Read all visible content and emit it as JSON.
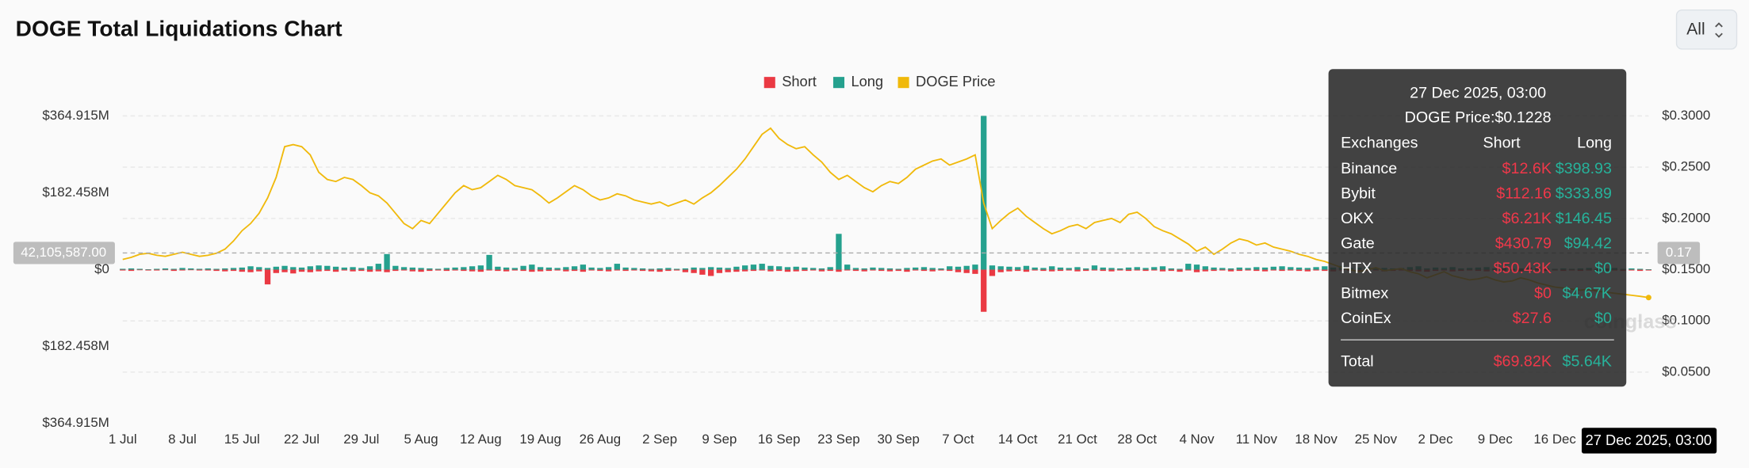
{
  "header": {
    "range_select": "All"
  },
  "watermark": "coinglass",
  "crosshair": {
    "y_label": "42,105,587.00",
    "y2_label": "0.17",
    "x_label": "27 Dec 2025, 03:00"
  },
  "tooltip": {
    "title": "27 Dec 2025, 03:00",
    "price": "DOGE Price:$0.1228",
    "columns": [
      "Exchanges",
      "Short",
      "Long"
    ],
    "rows": [
      [
        "Binance",
        "$12.6K",
        "$398.93"
      ],
      [
        "Bybit",
        "$112.16",
        "$333.89"
      ],
      [
        "OKX",
        "$6.21K",
        "$146.45"
      ],
      [
        "Gate",
        "$430.79",
        "$94.42"
      ],
      [
        "HTX",
        "$50.43K",
        "$0"
      ],
      [
        "Bitmex",
        "$0",
        "$4.67K"
      ],
      [
        "CoinEx",
        "$27.6",
        "$0"
      ]
    ],
    "total": [
      "Total",
      "$69.82K",
      "$5.64K"
    ]
  },
  "chart_data": {
    "type": "bar",
    "title": "DOGE Total Liquidations Chart",
    "categories": [
      "1 Jul",
      null,
      null,
      null,
      null,
      null,
      null,
      "8 Jul",
      null,
      null,
      null,
      null,
      null,
      null,
      "15 Jul",
      null,
      null,
      null,
      null,
      null,
      null,
      "22 Jul",
      null,
      null,
      null,
      null,
      null,
      null,
      "29 Jul",
      null,
      null,
      null,
      null,
      null,
      null,
      "5 Aug",
      null,
      null,
      null,
      null,
      null,
      null,
      "12 Aug",
      null,
      null,
      null,
      null,
      null,
      null,
      "19 Aug",
      null,
      null,
      null,
      null,
      null,
      null,
      "26 Aug",
      null,
      null,
      null,
      null,
      null,
      null,
      "2 Sep",
      null,
      null,
      null,
      null,
      null,
      null,
      "9 Sep",
      null,
      null,
      null,
      null,
      null,
      null,
      "16 Sep",
      null,
      null,
      null,
      null,
      null,
      null,
      "23 Sep",
      null,
      null,
      null,
      null,
      null,
      null,
      "30 Sep",
      null,
      null,
      null,
      null,
      null,
      null,
      "7 Oct",
      null,
      null,
      null,
      null,
      null,
      null,
      "14 Oct",
      null,
      null,
      null,
      null,
      null,
      null,
      "21 Oct",
      null,
      null,
      null,
      null,
      null,
      null,
      "28 Oct",
      null,
      null,
      null,
      null,
      null,
      null,
      "4 Nov",
      null,
      null,
      null,
      null,
      null,
      null,
      "11 Nov",
      null,
      null,
      null,
      null,
      null,
      null,
      "18 Nov",
      null,
      null,
      null,
      null,
      null,
      null,
      "25 Nov",
      null,
      null,
      null,
      null,
      null,
      null,
      "2 Dec",
      null,
      null,
      null,
      null,
      null,
      null,
      "9 Dec",
      null,
      null,
      null,
      null,
      null,
      null,
      "16 Dec",
      null,
      null,
      null,
      null,
      null,
      null,
      null,
      null,
      null,
      null,
      null
    ],
    "series": [
      {
        "name": "Short",
        "type": "bar",
        "color": "#ea3943",
        "values": [
          -2,
          -3,
          -1,
          -2,
          -2,
          -1,
          -3,
          -2,
          -1,
          -2,
          -2,
          -3,
          -4,
          -3,
          -5,
          -6,
          -4,
          -35,
          -8,
          -6,
          -9,
          -5,
          -6,
          -4,
          -3,
          -5,
          -2,
          -4,
          -3,
          -5,
          -4,
          -6,
          -3,
          -2,
          -4,
          -5,
          -3,
          -2,
          -3,
          -2,
          -3,
          -4,
          -5,
          -2,
          -3,
          -4,
          -2,
          -3,
          -5,
          -4,
          -3,
          -2,
          -4,
          -3,
          -5,
          -2,
          -3,
          -4,
          -2,
          -3,
          -2,
          -3,
          -4,
          -5,
          -3,
          -2,
          -6,
          -8,
          -12,
          -15,
          -8,
          -6,
          -5,
          -4,
          -3,
          -2,
          -4,
          -3,
          -5,
          -4,
          -3,
          -2,
          -4,
          -3,
          -5,
          -2,
          -3,
          -4,
          -2,
          -3,
          -4,
          -3,
          -5,
          -2,
          -3,
          -4,
          -2,
          -3,
          -6,
          -8,
          -10,
          -100,
          -15,
          -6,
          -4,
          -3,
          -5,
          -2,
          -3,
          -4,
          -3,
          -2,
          -4,
          -3,
          -2,
          -3,
          -4,
          -2,
          -3,
          -2,
          -3,
          -2,
          -4,
          -3,
          -5,
          -2,
          -6,
          -4,
          -3,
          -2,
          -4,
          -3,
          -2,
          -3,
          -4,
          -2,
          -3,
          -2,
          -3,
          -4,
          -2,
          -3,
          -4,
          -2,
          -3,
          -5,
          -3,
          -2,
          -4,
          -3,
          -2,
          -3,
          -4,
          -5,
          -3,
          -2,
          -4,
          -3,
          -2,
          -3,
          -4,
          -2,
          -3,
          -2,
          -4,
          -3,
          -2,
          -3,
          -2,
          -3,
          -2,
          -3,
          -2,
          -4,
          -3,
          -2,
          -3,
          -2,
          -3,
          -2
        ]
      },
      {
        "name": "Long",
        "type": "bar",
        "color": "#25a18e",
        "values": [
          2,
          3,
          2,
          1,
          2,
          3,
          2,
          4,
          3,
          2,
          3,
          2,
          3,
          4,
          5,
          8,
          6,
          4,
          7,
          9,
          6,
          5,
          8,
          10,
          9,
          7,
          5,
          6,
          4,
          8,
          14,
          37,
          9,
          6,
          5,
          4,
          3,
          2,
          4,
          5,
          6,
          8,
          10,
          35,
          7,
          5,
          4,
          9,
          12,
          6,
          5,
          4,
          6,
          8,
          12,
          5,
          4,
          6,
          14,
          5,
          4,
          3,
          2,
          3,
          4,
          2,
          3,
          5,
          4,
          6,
          5,
          4,
          7,
          10,
          12,
          14,
          9,
          8,
          6,
          7,
          5,
          4,
          3,
          6,
          85,
          12,
          4,
          3,
          5,
          4,
          3,
          2,
          4,
          5,
          6,
          4,
          3,
          8,
          7,
          9,
          12,
          364.915,
          10,
          8,
          7,
          6,
          9,
          5,
          4,
          8,
          5,
          4,
          6,
          3,
          10,
          5,
          4,
          3,
          5,
          6,
          4,
          6,
          8,
          3,
          2,
          14,
          12,
          8,
          5,
          4,
          3,
          5,
          4,
          6,
          5,
          7,
          8,
          6,
          5,
          4,
          6,
          8,
          5,
          9,
          4,
          5,
          6,
          3,
          4,
          3,
          4,
          6,
          8,
          3,
          5,
          4,
          6,
          3,
          4,
          5,
          6,
          3,
          4,
          2,
          3,
          5,
          4,
          3,
          2,
          3,
          2,
          3,
          4,
          2,
          3,
          4,
          2,
          3,
          2,
          1
        ]
      },
      {
        "name": "DOGE Price",
        "type": "line",
        "axis": "y2",
        "color": "#f0b90b",
        "values": [
          0.16,
          0.162,
          0.165,
          0.166,
          0.164,
          0.163,
          0.165,
          0.167,
          0.165,
          0.163,
          0.164,
          0.166,
          0.17,
          0.178,
          0.188,
          0.195,
          0.205,
          0.22,
          0.24,
          0.27,
          0.272,
          0.27,
          0.262,
          0.245,
          0.238,
          0.236,
          0.24,
          0.238,
          0.232,
          0.225,
          0.222,
          0.215,
          0.205,
          0.195,
          0.19,
          0.198,
          0.195,
          0.205,
          0.215,
          0.225,
          0.232,
          0.228,
          0.23,
          0.236,
          0.242,
          0.238,
          0.232,
          0.23,
          0.228,
          0.222,
          0.215,
          0.22,
          0.226,
          0.232,
          0.228,
          0.222,
          0.218,
          0.22,
          0.224,
          0.222,
          0.218,
          0.216,
          0.214,
          0.216,
          0.212,
          0.215,
          0.218,
          0.214,
          0.22,
          0.225,
          0.232,
          0.24,
          0.248,
          0.258,
          0.27,
          0.282,
          0.288,
          0.278,
          0.272,
          0.268,
          0.27,
          0.262,
          0.255,
          0.245,
          0.238,
          0.242,
          0.236,
          0.23,
          0.226,
          0.232,
          0.236,
          0.234,
          0.24,
          0.248,
          0.252,
          0.256,
          0.258,
          0.252,
          0.255,
          0.258,
          0.262,
          0.215,
          0.19,
          0.198,
          0.205,
          0.21,
          0.202,
          0.196,
          0.19,
          0.185,
          0.188,
          0.192,
          0.194,
          0.19,
          0.196,
          0.198,
          0.2,
          0.196,
          0.204,
          0.206,
          0.2,
          0.192,
          0.188,
          0.185,
          0.18,
          0.175,
          0.168,
          0.172,
          0.165,
          0.17,
          0.176,
          0.18,
          0.178,
          0.174,
          0.176,
          0.172,
          0.17,
          0.168,
          0.165,
          0.163,
          0.16,
          0.158,
          0.155,
          0.152,
          0.15,
          0.148,
          0.15,
          0.152,
          0.149,
          0.15,
          0.151,
          0.148,
          0.146,
          0.142,
          0.145,
          0.148,
          0.144,
          0.142,
          0.14,
          0.141,
          0.143,
          0.14,
          0.138,
          0.139,
          0.142,
          0.14,
          0.137,
          0.135,
          0.133,
          0.132,
          0.131,
          0.13,
          0.131,
          0.129,
          0.128,
          0.127,
          0.126,
          0.125,
          0.124,
          0.1228
        ]
      }
    ],
    "ylim": [
      -364.915,
      364.915
    ],
    "yticks": [
      {
        "value": 364.915,
        "label": "$364.915M"
      },
      {
        "value": 182.458,
        "label": "$182.458M"
      },
      {
        "value": 0,
        "label": "$0"
      },
      {
        "value": -182.458,
        "label": "$182.458M"
      },
      {
        "value": -364.915,
        "label": "$364.915M"
      }
    ],
    "y2lim": [
      0,
      0.3
    ],
    "y2ticks": [
      {
        "value": 0.05,
        "label": "$0.0500"
      },
      {
        "value": 0.1,
        "label": "$0.1000"
      },
      {
        "value": 0.15,
        "label": "$0.1500"
      },
      {
        "value": 0.2,
        "label": "$0.2000"
      },
      {
        "value": 0.25,
        "label": "$0.2500"
      },
      {
        "value": 0.3,
        "label": "$0.3000"
      }
    ],
    "grid": true,
    "legend": "top"
  }
}
